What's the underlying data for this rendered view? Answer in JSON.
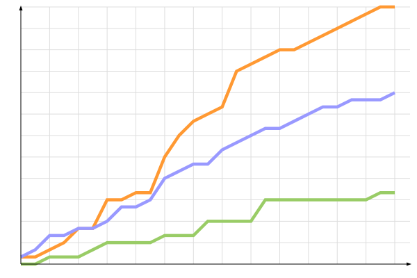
{
  "chart_data": {
    "type": "line",
    "title": "",
    "xlabel": "",
    "ylabel": "",
    "x": [
      0,
      1,
      2,
      3,
      4,
      5,
      6,
      7,
      8,
      9,
      10,
      11,
      12,
      13,
      14,
      15,
      16,
      17,
      18,
      19,
      20,
      21,
      22,
      23,
      24,
      25,
      26
    ],
    "xlim": [
      0,
      26
    ],
    "ylim": [
      0,
      36
    ],
    "grid": true,
    "legend": "none",
    "series": [
      {
        "color": "#ff9933",
        "values": [
          1,
          1,
          2,
          3,
          5,
          5,
          9,
          9,
          10,
          10,
          15,
          18,
          20,
          21,
          22,
          27,
          28,
          29,
          30,
          30,
          31,
          32,
          33,
          34,
          35,
          36,
          36
        ]
      },
      {
        "color": "#9999ff",
        "values": [
          1,
          2,
          4,
          4,
          5,
          5,
          6,
          8,
          8,
          9,
          12,
          13,
          14,
          14,
          16,
          17,
          18,
          19,
          19,
          20,
          21,
          22,
          22,
          23,
          23,
          23,
          24
        ]
      },
      {
        "color": "#99cc66",
        "values": [
          0,
          0,
          1,
          1,
          1,
          2,
          3,
          3,
          3,
          3,
          4,
          4,
          4,
          6,
          6,
          6,
          6,
          9,
          9,
          9,
          9,
          9,
          9,
          9,
          9,
          10,
          10
        ]
      }
    ]
  }
}
